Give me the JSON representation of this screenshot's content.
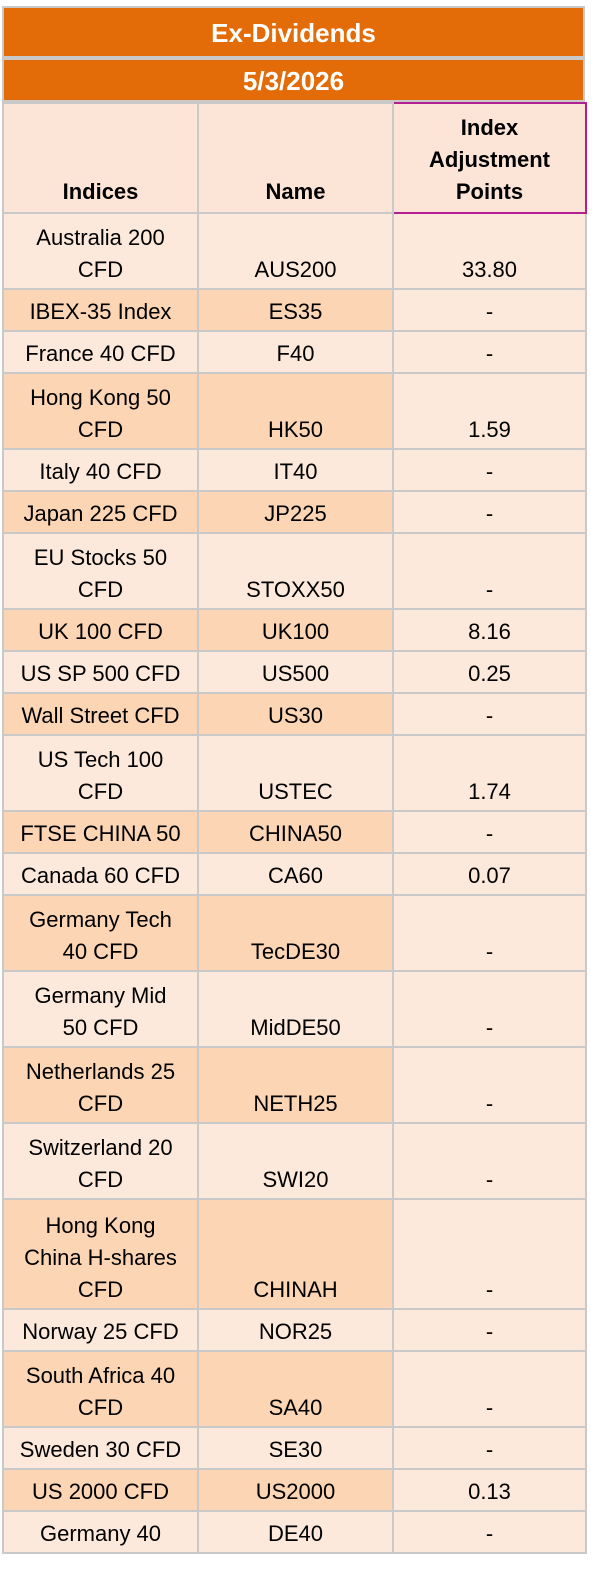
{
  "title": "Ex-Dividends",
  "date": "5/3/2026",
  "headers": {
    "indices": "Indices",
    "name": "Name",
    "adjustment_lines": [
      "Index",
      "Adjustment",
      "Points"
    ]
  },
  "colors": {
    "band": "#E36C09",
    "row_light": "#FDE9DB",
    "row_dark": "#FCD5B4",
    "grid": "#C9C9C9",
    "header_highlight": "#B0208F"
  },
  "rows": [
    {
      "index": [
        "Australia 200",
        "CFD"
      ],
      "name": "AUS200",
      "points": "33.80",
      "shade": "light"
    },
    {
      "index": [
        "IBEX-35 Index"
      ],
      "name": "ES35",
      "points": "-",
      "shade": "dark"
    },
    {
      "index": [
        "France 40 CFD"
      ],
      "name": "F40",
      "points": "-",
      "shade": "light"
    },
    {
      "index": [
        "Hong Kong 50",
        "CFD"
      ],
      "name": "HK50",
      "points": "1.59",
      "shade": "dark"
    },
    {
      "index": [
        "Italy 40 CFD"
      ],
      "name": "IT40",
      "points": "-",
      "shade": "light"
    },
    {
      "index": [
        "Japan 225 CFD"
      ],
      "name": "JP225",
      "points": "-",
      "shade": "dark"
    },
    {
      "index": [
        "EU Stocks 50",
        "CFD"
      ],
      "name": "STOXX50",
      "points": "-",
      "shade": "light"
    },
    {
      "index": [
        "UK 100 CFD"
      ],
      "name": "UK100",
      "points": "8.16",
      "shade": "dark"
    },
    {
      "index": [
        "US SP 500 CFD"
      ],
      "name": "US500",
      "points": "0.25",
      "shade": "light"
    },
    {
      "index": [
        "Wall Street CFD"
      ],
      "name": "US30",
      "points": "-",
      "shade": "dark"
    },
    {
      "index": [
        "US Tech 100",
        "CFD"
      ],
      "name": "USTEC",
      "points": "1.74",
      "shade": "light"
    },
    {
      "index": [
        "FTSE CHINA 50"
      ],
      "name": "CHINA50",
      "points": "-",
      "shade": "dark"
    },
    {
      "index": [
        "Canada 60 CFD"
      ],
      "name": "CA60",
      "points": "0.07",
      "shade": "light"
    },
    {
      "index": [
        "Germany Tech",
        "40 CFD"
      ],
      "name": "TecDE30",
      "points": "-",
      "shade": "dark"
    },
    {
      "index": [
        "Germany Mid",
        "50 CFD"
      ],
      "name": "MidDE50",
      "points": "-",
      "shade": "light"
    },
    {
      "index": [
        "Netherlands 25",
        "CFD"
      ],
      "name": "NETH25",
      "points": "-",
      "shade": "dark"
    },
    {
      "index": [
        "Switzerland 20",
        "CFD"
      ],
      "name": "SWI20",
      "points": "-",
      "shade": "light"
    },
    {
      "index": [
        "Hong Kong",
        "China H-shares",
        "CFD"
      ],
      "name": "CHINAH",
      "points": "-",
      "shade": "dark"
    },
    {
      "index": [
        "Norway 25 CFD"
      ],
      "name": "NOR25",
      "points": "-",
      "shade": "light"
    },
    {
      "index": [
        "South Africa 40",
        "CFD"
      ],
      "name": "SA40",
      "points": "-",
      "shade": "dark"
    },
    {
      "index": [
        "Sweden 30 CFD"
      ],
      "name": "SE30",
      "points": "-",
      "shade": "light"
    },
    {
      "index": [
        "US 2000 CFD"
      ],
      "name": "US2000",
      "points": "0.13",
      "shade": "dark"
    },
    {
      "index": [
        "Germany 40"
      ],
      "name": "DE40",
      "points": "-",
      "shade": "light"
    }
  ]
}
